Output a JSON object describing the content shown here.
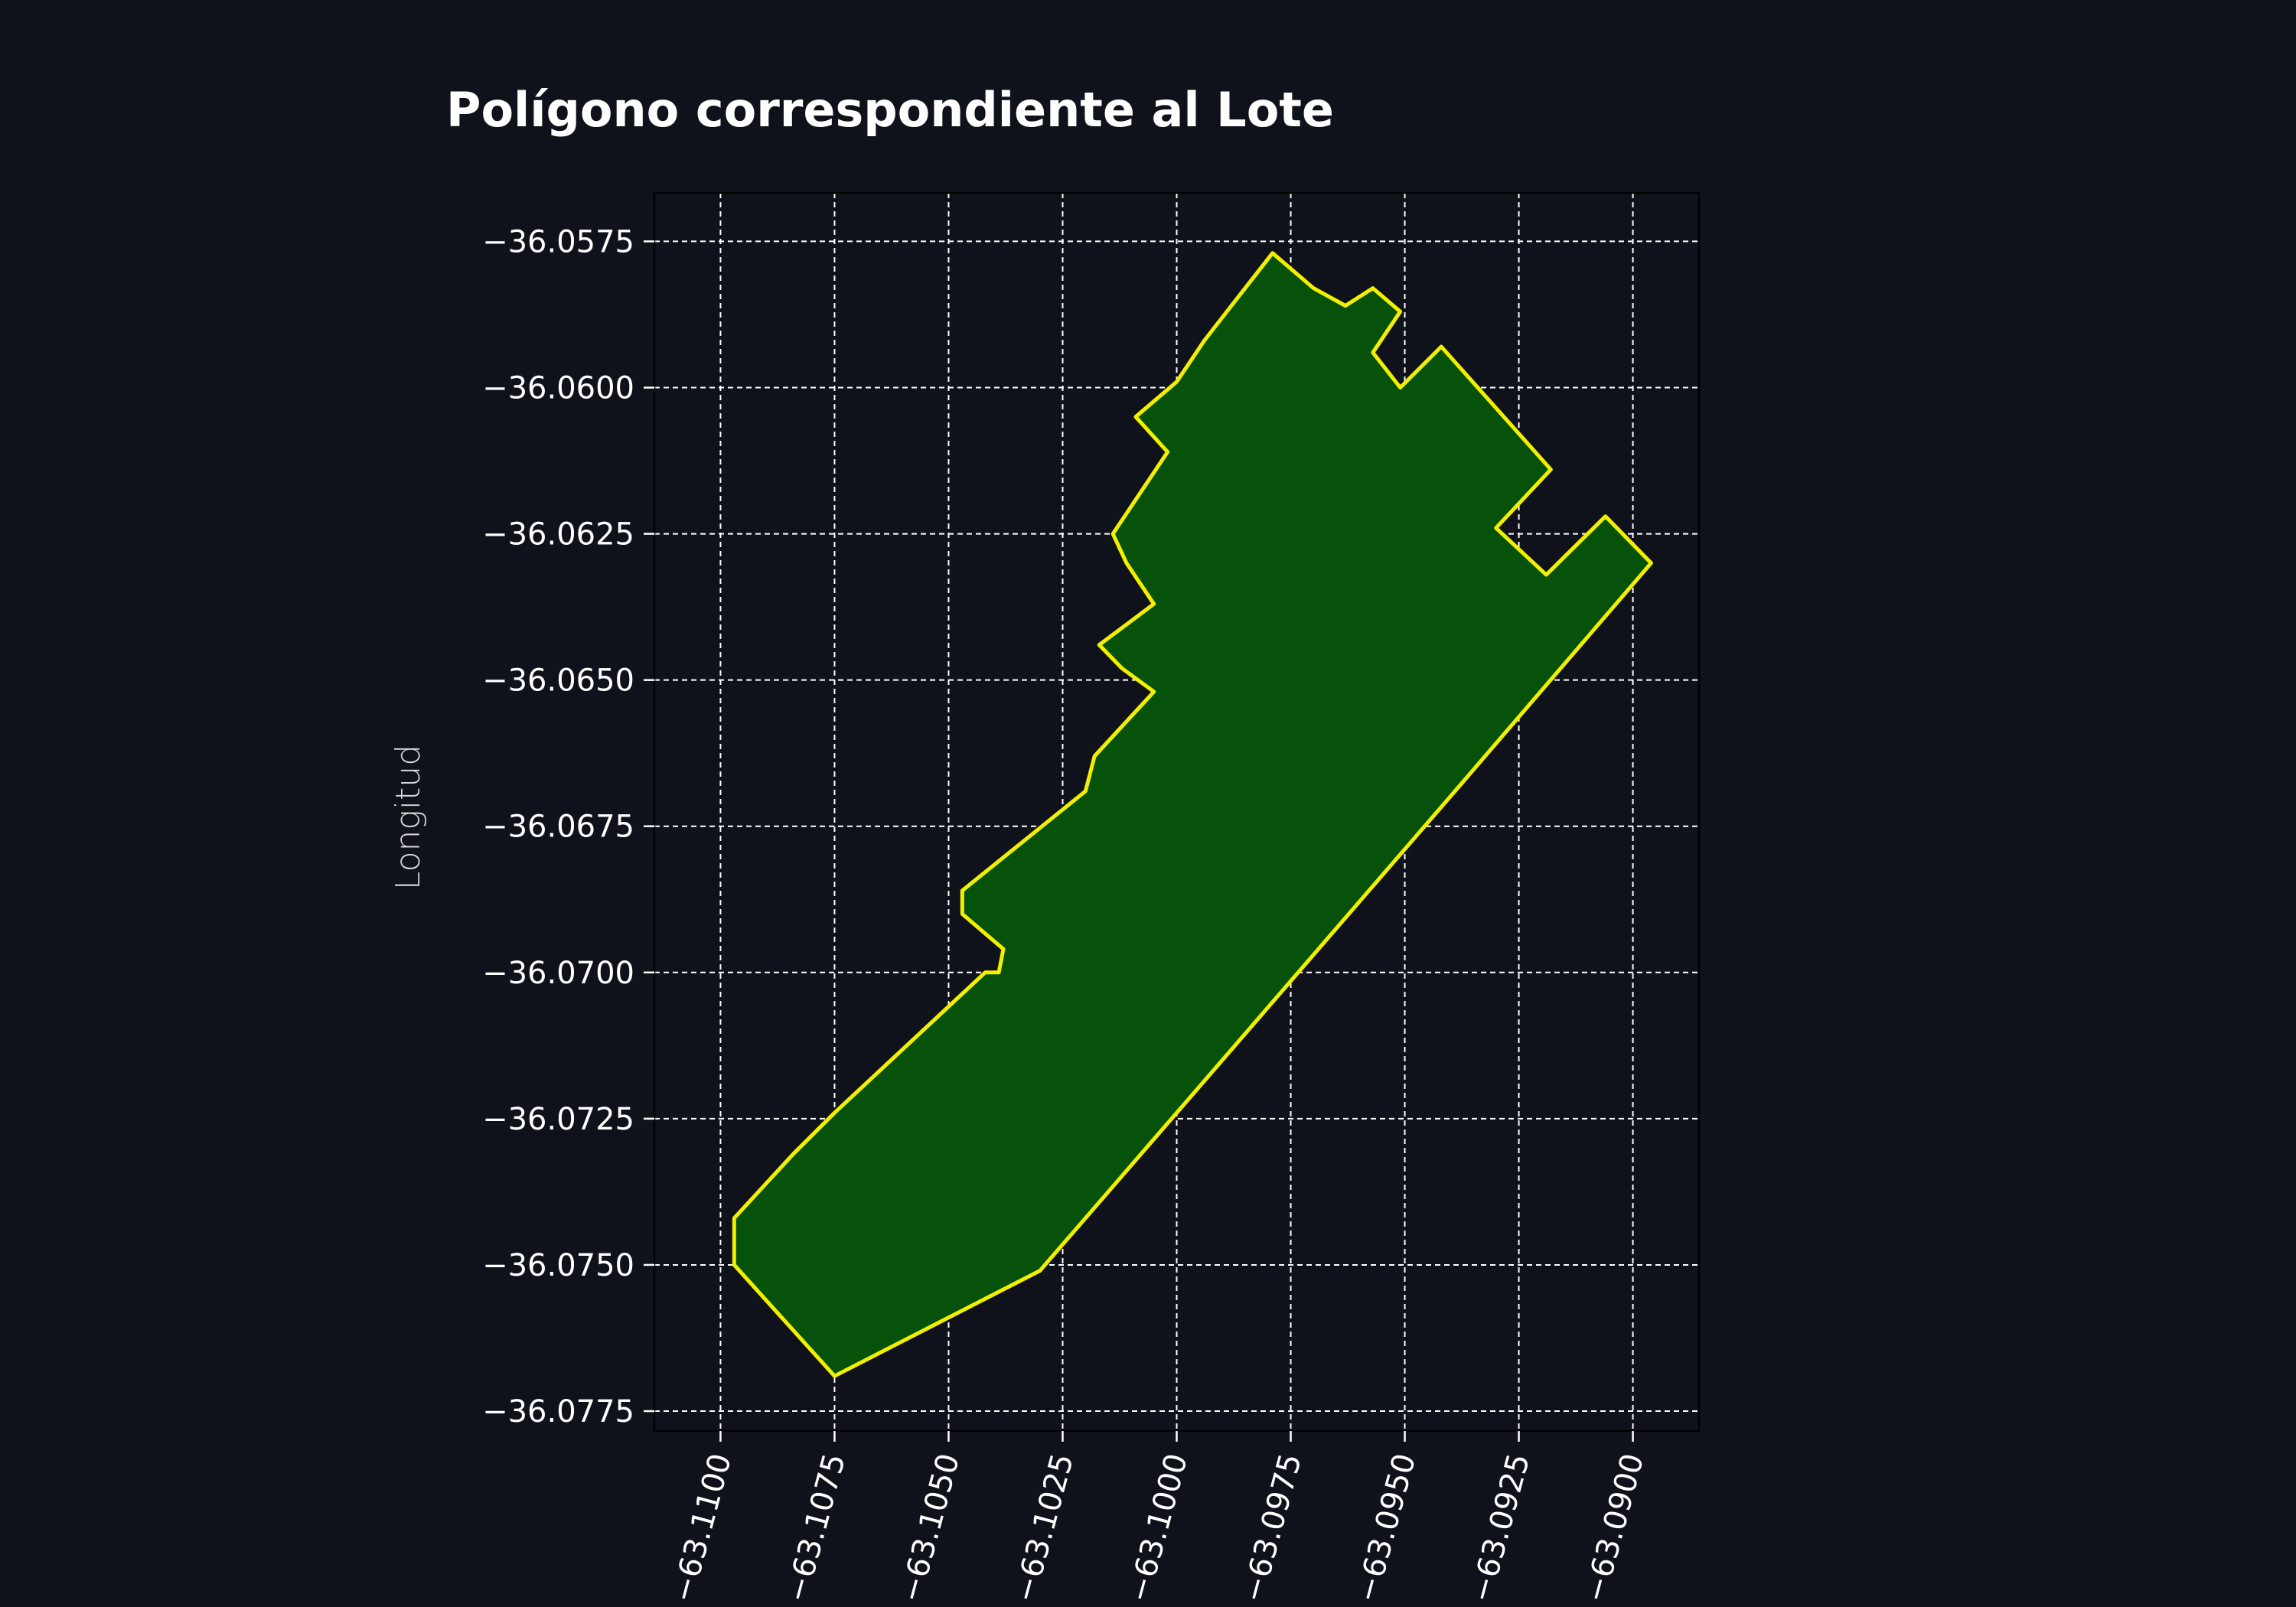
{
  "chart_data": {
    "type": "area",
    "title": "Polígono correspondiente al Lote",
    "xlabel": "",
    "ylabel": "Longitud",
    "xlim": [
      -63.11145,
      -63.08855
    ],
    "ylim": [
      -36.07784,
      -36.05667
    ],
    "grid": true,
    "x_ticks": [
      -63.11,
      -63.1075,
      -63.105,
      -63.1025,
      -63.1,
      -63.0975,
      -63.095,
      -63.0925,
      -63.09
    ],
    "x_tick_labels": [
      "−63.1100",
      "−63.1075",
      "−63.1050",
      "−63.1025",
      "−63.1000",
      "−63.0975",
      "−63.0950",
      "−63.0925",
      "−63.0900"
    ],
    "y_ticks": [
      -36.0575,
      -36.06,
      -36.0625,
      -36.065,
      -36.0675,
      -36.07,
      -36.0725,
      -36.075,
      -36.0775
    ],
    "y_tick_labels": [
      "−36.0575",
      "−36.0600",
      "−36.0625",
      "−36.0650",
      "−36.0675",
      "−36.0700",
      "−36.0725",
      "−36.0750",
      "−36.0775"
    ],
    "polygon": {
      "fill": "#06520a",
      "stroke": "#f2f000",
      "points": [
        [
          -63.0979,
          -36.0577
        ],
        [
          -63.097,
          -36.0583
        ],
        [
          -63.0963,
          -36.0586
        ],
        [
          -63.0957,
          -36.0583
        ],
        [
          -63.0951,
          -36.0587
        ],
        [
          -63.0957,
          -36.0594
        ],
        [
          -63.0951,
          -36.06
        ],
        [
          -63.0942,
          -36.0593
        ],
        [
          -63.0918,
          -36.0614
        ],
        [
          -63.093,
          -36.0624
        ],
        [
          -63.0919,
          -36.0632
        ],
        [
          -63.0906,
          -36.0622
        ],
        [
          -63.0896,
          -36.063
        ],
        [
          -63.0939,
          -36.0669
        ],
        [
          -63.099,
          -36.0715
        ],
        [
          -63.103,
          -36.0751
        ],
        [
          -63.1075,
          -36.0769
        ],
        [
          -63.1097,
          -36.075
        ],
        [
          -63.1097,
          -36.0742
        ],
        [
          -63.1084,
          -36.0731
        ],
        [
          -63.1075,
          -36.0724
        ],
        [
          -63.1042,
          -36.07
        ],
        [
          -63.1039,
          -36.07
        ],
        [
          -63.1038,
          -36.0696
        ],
        [
          -63.1047,
          -36.069
        ],
        [
          -63.1047,
          -36.0686
        ],
        [
          -63.102,
          -36.0669
        ],
        [
          -63.1018,
          -36.0663
        ],
        [
          -63.1005,
          -36.0652
        ],
        [
          -63.1012,
          -36.0648
        ],
        [
          -63.1017,
          -36.0644
        ],
        [
          -63.1005,
          -36.0637
        ],
        [
          -63.1011,
          -36.063
        ],
        [
          -63.1014,
          -36.0625
        ],
        [
          -63.1002,
          -36.0611
        ],
        [
          -63.1009,
          -36.0605
        ],
        [
          -63.1,
          -36.0599
        ],
        [
          -63.0994,
          -36.0592
        ],
        [
          -63.0988,
          -36.0586
        ]
      ]
    }
  }
}
